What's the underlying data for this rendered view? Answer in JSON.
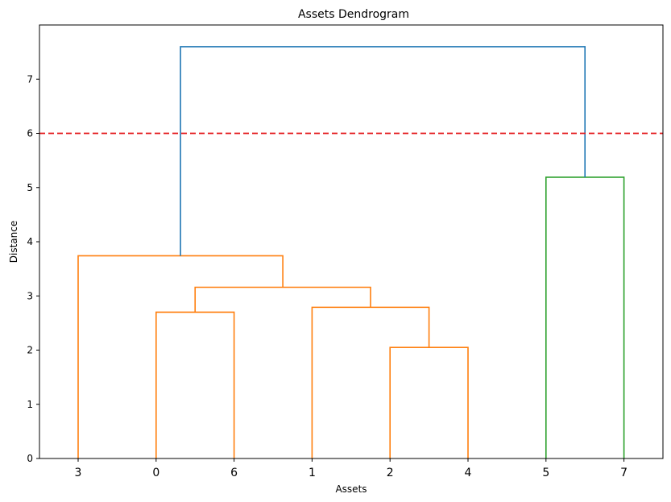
{
  "chart_data": {
    "type": "dendrogram",
    "title": "Assets Dendrogram",
    "xlabel": "Assets",
    "ylabel": "Distance",
    "ylim": [
      0,
      8
    ],
    "yticks": [
      0,
      1,
      2,
      3,
      4,
      5,
      6,
      7
    ],
    "leaf_order": [
      "3",
      "0",
      "6",
      "1",
      "2",
      "4",
      "5",
      "7"
    ],
    "grid": false,
    "threshold": {
      "value": 6,
      "color": "#e41a1c",
      "style": "dashed"
    },
    "colors": {
      "orange": "#ff7f0e",
      "green": "#2ca02c",
      "blue": "#1f77b4"
    },
    "merges": [
      {
        "left": [
          4
        ],
        "right": [
          5
        ],
        "height": 2.05,
        "color": "orange"
      },
      {
        "left": [
          1
        ],
        "right": [
          2
        ],
        "height": 2.7,
        "color": "orange"
      },
      {
        "left": [
          3
        ],
        "right": [
          4,
          5
        ],
        "height": 2.79,
        "color": "orange"
      },
      {
        "left": [
          1,
          2
        ],
        "right": [
          3,
          4,
          5
        ],
        "height": 3.16,
        "color": "orange"
      },
      {
        "left": [
          0
        ],
        "right": [
          1,
          2,
          3,
          4,
          5
        ],
        "height": 3.74,
        "color": "orange"
      },
      {
        "left": [
          6
        ],
        "right": [
          7
        ],
        "height": 5.19,
        "color": "green"
      },
      {
        "left": [
          0,
          1,
          2,
          3,
          4,
          5
        ],
        "right": [
          6,
          7
        ],
        "height": 7.6,
        "color": "blue"
      }
    ]
  }
}
